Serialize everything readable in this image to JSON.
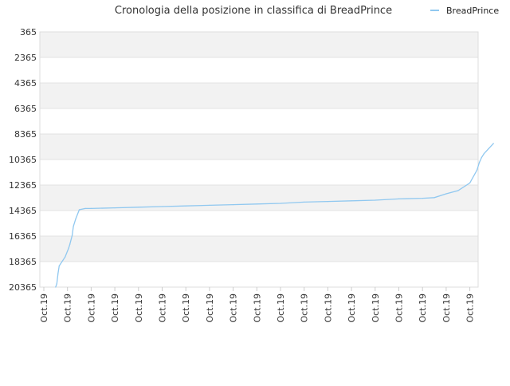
{
  "chart_data": {
    "type": "line",
    "title": "Cronologia della posizione in classifica di BreadPrince",
    "xlabel": "",
    "ylabel": "",
    "y_reversed": true,
    "ylim": [
      20365,
      365
    ],
    "y_ticks": [
      365,
      2365,
      4365,
      6365,
      8365,
      10365,
      12365,
      14365,
      16365,
      18365,
      20365
    ],
    "x_ticks": [
      "Oct.19",
      "Oct.19",
      "Oct.19",
      "Oct.19",
      "Oct.19",
      "Oct.19",
      "Oct.19",
      "Oct.19",
      "Oct.19",
      "Oct.19",
      "Oct.19",
      "Oct.19",
      "Oct.19",
      "Oct.19",
      "Oct.19",
      "Oct.19",
      "Oct.19",
      "Oct.19",
      "Oct.19"
    ],
    "grid": "horizontal alternating bands",
    "legend_position": "top-right",
    "series": [
      {
        "name": "BreadPrince",
        "color": "#90c8f0",
        "points": [
          [
            0.5,
            20365
          ],
          [
            0.55,
            20100
          ],
          [
            0.6,
            19300
          ],
          [
            0.65,
            18700
          ],
          [
            0.9,
            18000
          ],
          [
            1.05,
            17300
          ],
          [
            1.1,
            17000
          ],
          [
            1.2,
            16300
          ],
          [
            1.25,
            15600
          ],
          [
            1.35,
            15000
          ],
          [
            1.5,
            14300
          ],
          [
            1.75,
            14200
          ],
          [
            2.0,
            14200
          ],
          [
            3.0,
            14150
          ],
          [
            4.0,
            14100
          ],
          [
            5.0,
            14050
          ],
          [
            6.0,
            14000
          ],
          [
            7.0,
            13950
          ],
          [
            8.0,
            13900
          ],
          [
            9.0,
            13850
          ],
          [
            10.0,
            13800
          ],
          [
            11.0,
            13700
          ],
          [
            12.0,
            13650
          ],
          [
            13.0,
            13600
          ],
          [
            14.0,
            13550
          ],
          [
            15.0,
            13450
          ],
          [
            16.0,
            13400
          ],
          [
            16.5,
            13350
          ],
          [
            17.0,
            13050
          ],
          [
            17.5,
            12800
          ],
          [
            18.0,
            12200
          ],
          [
            18.3,
            11200
          ],
          [
            18.4,
            10600
          ],
          [
            18.5,
            10200
          ],
          [
            18.6,
            9900
          ],
          [
            18.7,
            9700
          ],
          [
            18.8,
            9500
          ],
          [
            19.0,
            9100
          ]
        ]
      }
    ]
  }
}
